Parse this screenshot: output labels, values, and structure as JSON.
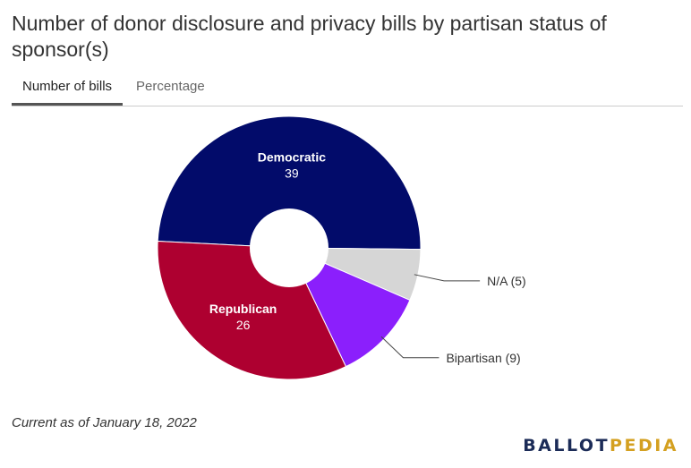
{
  "title": "Number of donor disclosure and privacy bills by partisan status of sponsor(s)",
  "tabs": [
    {
      "label": "Number of bills",
      "active": true
    },
    {
      "label": "Percentage",
      "active": false
    }
  ],
  "chart_data": {
    "type": "pie",
    "donut": true,
    "categories": [
      "Democratic",
      "N/A",
      "Bipartisan",
      "Republican"
    ],
    "values": [
      39,
      5,
      9,
      26
    ],
    "colors": [
      "#020b6a",
      "#d6d6d6",
      "#8b1ffc",
      "#ae0030"
    ],
    "inside_labels": [
      "Democratic",
      null,
      null,
      "Republican"
    ],
    "outside_labels": [
      null,
      "N/A (5)",
      "Bipartisan (9)",
      null
    ],
    "title": "Number of donor disclosure and privacy bills by partisan status of sponsor(s)"
  },
  "footnote": "Current as of January 18, 2022",
  "logo": {
    "part1": "BALLOT",
    "part2": "PEDIA"
  }
}
